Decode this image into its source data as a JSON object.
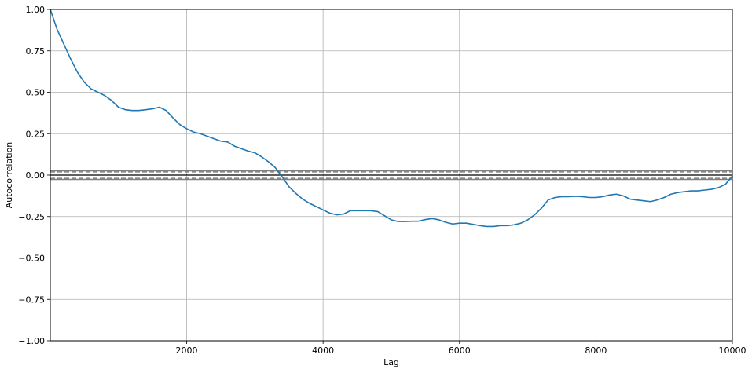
{
  "chart_data": {
    "type": "line",
    "title": "",
    "xlabel": "Lag",
    "ylabel": "Autocorrelation",
    "xlim": [
      1,
      10000
    ],
    "ylim": [
      -1.0,
      1.0
    ],
    "grid": true,
    "legend": "none",
    "x_ticks": [
      2000,
      4000,
      6000,
      8000,
      10000
    ],
    "x_tick_labels": [
      "2000",
      "4000",
      "6000",
      "8000",
      "10000"
    ],
    "y_ticks": [
      -1.0,
      -0.75,
      -0.5,
      -0.25,
      0.0,
      0.25,
      0.5,
      0.75,
      1.0
    ],
    "y_tick_labels": [
      "−1.00",
      "−0.75",
      "−0.50",
      "−0.25",
      "0.00",
      "0.25",
      "0.50",
      "0.75",
      "1.00"
    ],
    "reference_lines": {
      "zero": 0.0,
      "solid_99": [
        0.0258,
        -0.0258
      ],
      "dashed_95": [
        0.0196,
        -0.0196
      ]
    },
    "series": [
      {
        "color": "#1f77b4",
        "x": [
          1,
          100,
          200,
          300,
          400,
          500,
          600,
          700,
          800,
          900,
          1000,
          1100,
          1200,
          1300,
          1400,
          1500,
          1600,
          1700,
          1800,
          1900,
          2000,
          2100,
          2200,
          2300,
          2400,
          2500,
          2600,
          2700,
          2800,
          2900,
          3000,
          3100,
          3200,
          3300,
          3400,
          3500,
          3600,
          3700,
          3800,
          3900,
          4000,
          4100,
          4200,
          4300,
          4400,
          4500,
          4600,
          4700,
          4800,
          4900,
          5000,
          5100,
          5200,
          5300,
          5400,
          5500,
          5600,
          5700,
          5800,
          5900,
          6000,
          6100,
          6200,
          6300,
          6400,
          6500,
          6600,
          6700,
          6800,
          6900,
          7000,
          7100,
          7200,
          7300,
          7400,
          7500,
          7600,
          7700,
          7800,
          7900,
          8000,
          8100,
          8200,
          8300,
          8400,
          8500,
          8600,
          8700,
          8800,
          8900,
          9000,
          9100,
          9200,
          9300,
          9400,
          9500,
          9600,
          9700,
          9800,
          9900,
          10000
        ],
        "values": [
          1.0,
          0.88,
          0.79,
          0.7,
          0.62,
          0.56,
          0.52,
          0.5,
          0.48,
          0.45,
          0.41,
          0.395,
          0.39,
          0.39,
          0.395,
          0.4,
          0.41,
          0.39,
          0.345,
          0.305,
          0.28,
          0.26,
          0.25,
          0.235,
          0.22,
          0.205,
          0.2,
          0.175,
          0.16,
          0.145,
          0.135,
          0.11,
          0.08,
          0.045,
          -0.01,
          -0.07,
          -0.11,
          -0.145,
          -0.17,
          -0.19,
          -0.21,
          -0.23,
          -0.24,
          -0.235,
          -0.215,
          -0.215,
          -0.215,
          -0.215,
          -0.22,
          -0.245,
          -0.27,
          -0.28,
          -0.28,
          -0.278,
          -0.278,
          -0.268,
          -0.262,
          -0.27,
          -0.285,
          -0.295,
          -0.29,
          -0.29,
          -0.297,
          -0.305,
          -0.31,
          -0.31,
          -0.305,
          -0.305,
          -0.3,
          -0.29,
          -0.27,
          -0.24,
          -0.2,
          -0.15,
          -0.135,
          -0.13,
          -0.13,
          -0.128,
          -0.13,
          -0.135,
          -0.135,
          -0.13,
          -0.12,
          -0.115,
          -0.125,
          -0.145,
          -0.15,
          -0.155,
          -0.16,
          -0.15,
          -0.135,
          -0.115,
          -0.105,
          -0.1,
          -0.095,
          -0.095,
          -0.09,
          -0.085,
          -0.075,
          -0.055,
          -0.005
        ]
      }
    ]
  }
}
